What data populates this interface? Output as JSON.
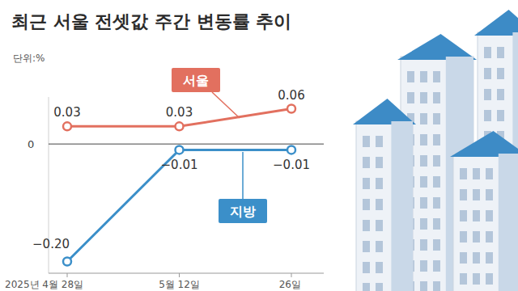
{
  "chart_data": {
    "type": "line",
    "title": "최근 서울 전셋값 주간 변동률 추이",
    "subtitle": "단위:%",
    "categories": [
      "2025년 4월 28일",
      "5월 12일",
      "26일"
    ],
    "series": [
      {
        "name": "서울",
        "color": "#e2705f",
        "marker": "circle",
        "line_style": "solid",
        "values": [
          0.03,
          0.03,
          0.06
        ],
        "value_labels": [
          "0.03",
          "0.03",
          "0.06"
        ]
      },
      {
        "name": "지방",
        "color": "#3b8fc9",
        "marker": "circle",
        "line_style": "solid",
        "values": [
          -0.2,
          -0.01,
          -0.01
        ],
        "value_labels": [
          "−0.20",
          "−0.01",
          "−0.01"
        ]
      }
    ],
    "ylim": [
      -0.22,
      0.08
    ],
    "yticks": [
      0
    ],
    "grid": true,
    "data_labels": true
  }
}
